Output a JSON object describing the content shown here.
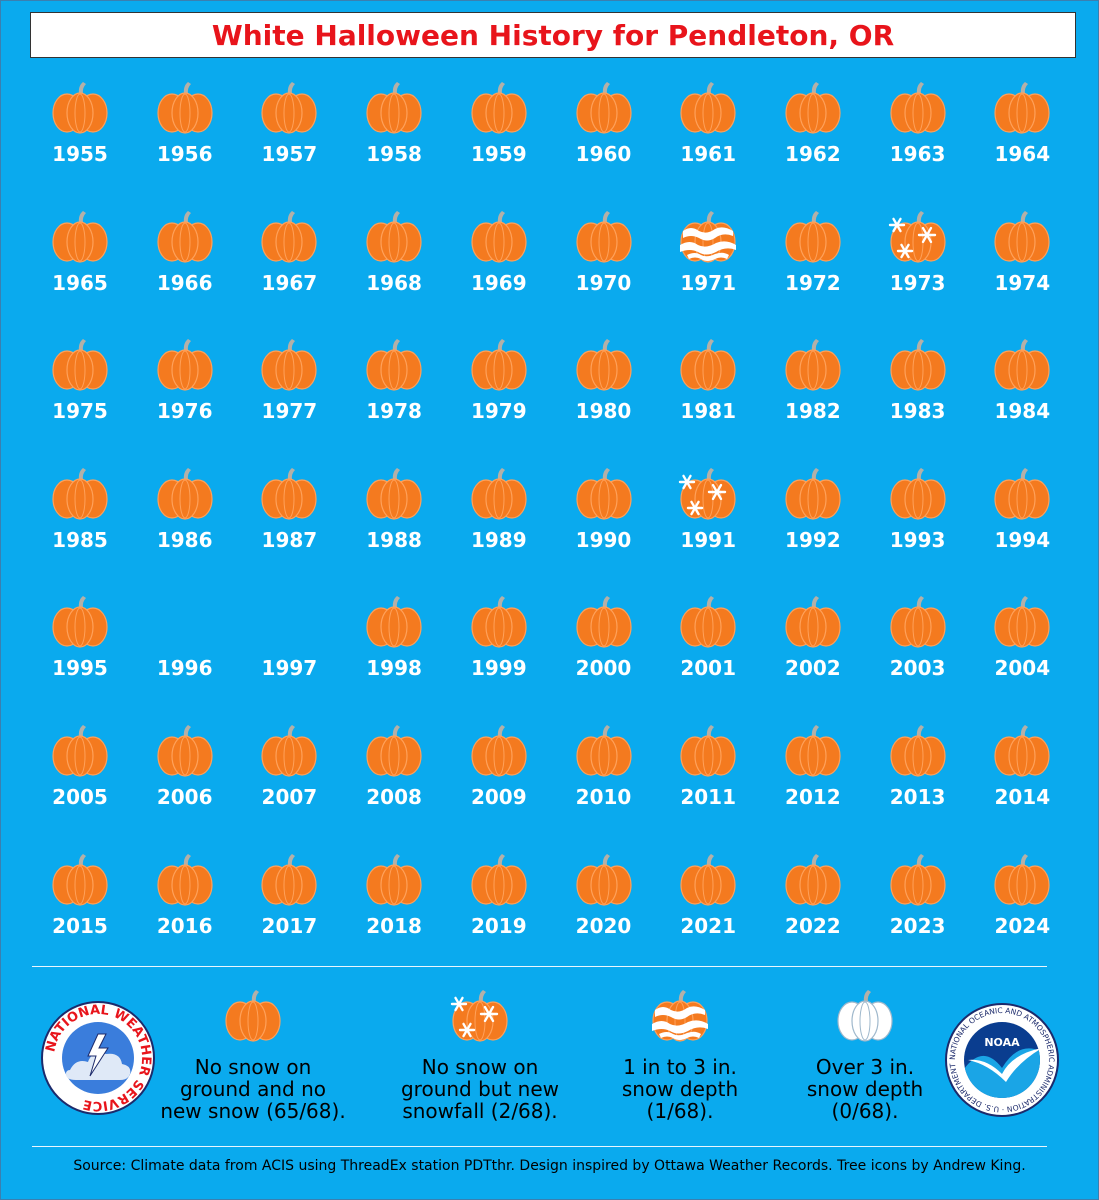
{
  "title": "White Halloween History for Pendleton, OR",
  "colors": {
    "background": "#0aaaee",
    "title_text": "#e8141b",
    "pumpkin": "#f47a1f",
    "pumpkin_rib": "#ffa15a",
    "stem": "#b4b0a8",
    "snow": "#ffffff",
    "year_text": "#ffffff"
  },
  "chart_data": {
    "type": "table",
    "years": [
      {
        "year": "1955",
        "category": "none"
      },
      {
        "year": "1956",
        "category": "none"
      },
      {
        "year": "1957",
        "category": "none"
      },
      {
        "year": "1958",
        "category": "none"
      },
      {
        "year": "1959",
        "category": "none"
      },
      {
        "year": "1960",
        "category": "none"
      },
      {
        "year": "1961",
        "category": "none"
      },
      {
        "year": "1962",
        "category": "none"
      },
      {
        "year": "1963",
        "category": "none"
      },
      {
        "year": "1964",
        "category": "none"
      },
      {
        "year": "1965",
        "category": "none"
      },
      {
        "year": "1966",
        "category": "none"
      },
      {
        "year": "1967",
        "category": "none"
      },
      {
        "year": "1968",
        "category": "none"
      },
      {
        "year": "1969",
        "category": "none"
      },
      {
        "year": "1970",
        "category": "none"
      },
      {
        "year": "1971",
        "category": "depth_1_3"
      },
      {
        "year": "1972",
        "category": "none"
      },
      {
        "year": "1973",
        "category": "snowfall"
      },
      {
        "year": "1974",
        "category": "none"
      },
      {
        "year": "1975",
        "category": "none"
      },
      {
        "year": "1976",
        "category": "none"
      },
      {
        "year": "1977",
        "category": "none"
      },
      {
        "year": "1978",
        "category": "none"
      },
      {
        "year": "1979",
        "category": "none"
      },
      {
        "year": "1980",
        "category": "none"
      },
      {
        "year": "1981",
        "category": "none"
      },
      {
        "year": "1982",
        "category": "none"
      },
      {
        "year": "1983",
        "category": "none"
      },
      {
        "year": "1984",
        "category": "none"
      },
      {
        "year": "1985",
        "category": "none"
      },
      {
        "year": "1986",
        "category": "none"
      },
      {
        "year": "1987",
        "category": "none"
      },
      {
        "year": "1988",
        "category": "none"
      },
      {
        "year": "1989",
        "category": "none"
      },
      {
        "year": "1990",
        "category": "none"
      },
      {
        "year": "1991",
        "category": "snowfall"
      },
      {
        "year": "1992",
        "category": "none"
      },
      {
        "year": "1993",
        "category": "none"
      },
      {
        "year": "1994",
        "category": "none"
      },
      {
        "year": "1995",
        "category": "none"
      },
      {
        "year": "1996",
        "category": "missing"
      },
      {
        "year": "1997",
        "category": "missing"
      },
      {
        "year": "1998",
        "category": "none"
      },
      {
        "year": "1999",
        "category": "none"
      },
      {
        "year": "2000",
        "category": "none"
      },
      {
        "year": "2001",
        "category": "none"
      },
      {
        "year": "2002",
        "category": "none"
      },
      {
        "year": "2003",
        "category": "none"
      },
      {
        "year": "2004",
        "category": "none"
      },
      {
        "year": "2005",
        "category": "none"
      },
      {
        "year": "2006",
        "category": "none"
      },
      {
        "year": "2007",
        "category": "none"
      },
      {
        "year": "2008",
        "category": "none"
      },
      {
        "year": "2009",
        "category": "none"
      },
      {
        "year": "2010",
        "category": "none"
      },
      {
        "year": "2011",
        "category": "none"
      },
      {
        "year": "2012",
        "category": "none"
      },
      {
        "year": "2013",
        "category": "none"
      },
      {
        "year": "2014",
        "category": "none"
      },
      {
        "year": "2015",
        "category": "none"
      },
      {
        "year": "2016",
        "category": "none"
      },
      {
        "year": "2017",
        "category": "none"
      },
      {
        "year": "2018",
        "category": "none"
      },
      {
        "year": "2019",
        "category": "none"
      },
      {
        "year": "2020",
        "category": "none"
      },
      {
        "year": "2021",
        "category": "none"
      },
      {
        "year": "2022",
        "category": "none"
      },
      {
        "year": "2023",
        "category": "none"
      },
      {
        "year": "2024",
        "category": "none"
      }
    ]
  },
  "legend": [
    {
      "category": "none",
      "lines": [
        "No snow on",
        "ground and no",
        "new snow (65/68)."
      ]
    },
    {
      "category": "snowfall",
      "lines": [
        "No snow on",
        "ground but new",
        "snowfall (2/68)."
      ]
    },
    {
      "category": "depth_1_3",
      "lines": [
        "1 in to 3 in.",
        "snow depth",
        "(1/68)."
      ]
    },
    {
      "category": "depth_over_3",
      "lines": [
        "Over 3 in.",
        "snow depth",
        "(0/68)."
      ]
    }
  ],
  "logos": {
    "nws": {
      "icon": "national-weather-service-logo",
      "text": "NATIONAL WEATHER SERVICE"
    },
    "noaa": {
      "icon": "noaa-logo",
      "text": "NOAA",
      "ring_text": "NATIONAL OCEANIC AND ATMOSPHERIC ADMINISTRATION · U.S. DEPARTMENT OF COMMERCE"
    }
  },
  "source": "Source: Climate data from ACIS using ThreadEx station PDTthr. Design inspired by Ottawa Weather Records. Tree icons by Andrew King."
}
